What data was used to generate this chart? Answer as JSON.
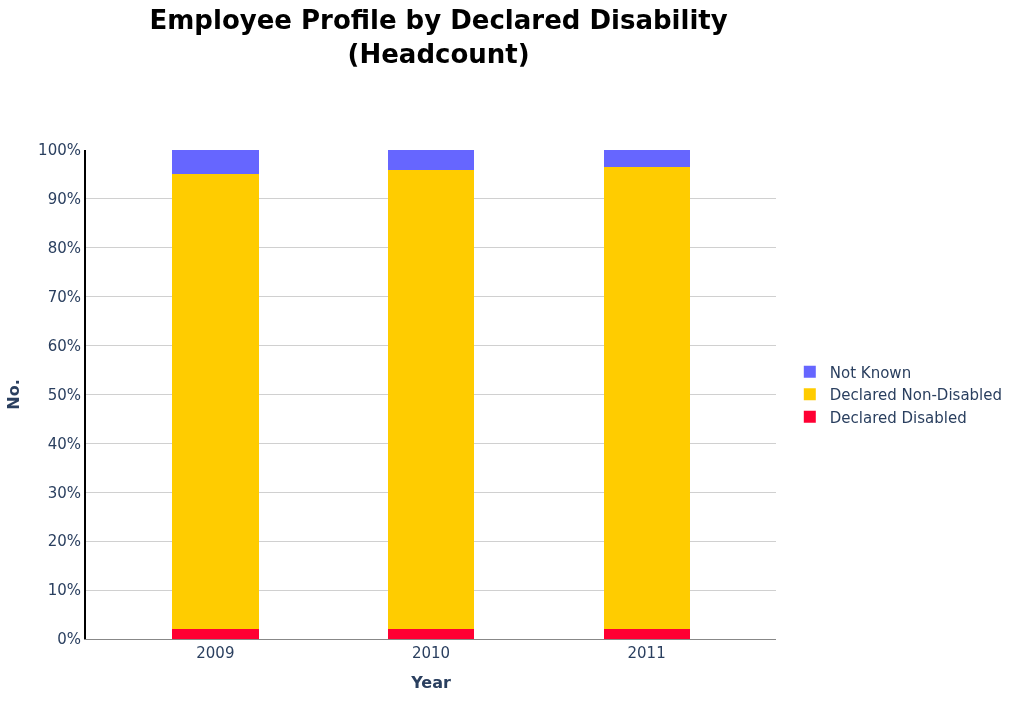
{
  "chart_data": {
    "type": "bar",
    "title": "Employee Profile by Declared Disability\n(Headcount)",
    "xlabel": "Year",
    "ylabel": "No.",
    "categories": [
      "2009",
      "2010",
      "2011"
    ],
    "stacked": true,
    "series": [
      {
        "name": "Declared Disabled",
        "color": "#ff0033",
        "values": [
          2,
          2,
          2
        ]
      },
      {
        "name": "Declared Non-Disabled",
        "color": "#ffcc00",
        "values": [
          93,
          94,
          94.5
        ]
      },
      {
        "name": "Not Known",
        "color": "#6666ff",
        "values": [
          5,
          4,
          3.5
        ]
      }
    ],
    "ylim": [
      0,
      100
    ],
    "yticks": [
      {
        "value": 0,
        "label": "0%"
      },
      {
        "value": 10,
        "label": "10%"
      },
      {
        "value": 20,
        "label": "20%"
      },
      {
        "value": 30,
        "label": "30%"
      },
      {
        "value": 40,
        "label": "40%"
      },
      {
        "value": 50,
        "label": "50%"
      },
      {
        "value": 60,
        "label": "60%"
      },
      {
        "value": 70,
        "label": "70%"
      },
      {
        "value": 80,
        "label": "80%"
      },
      {
        "value": 90,
        "label": "90%"
      },
      {
        "value": 100,
        "label": "100%"
      }
    ],
    "grid": "y",
    "legend": "right"
  }
}
